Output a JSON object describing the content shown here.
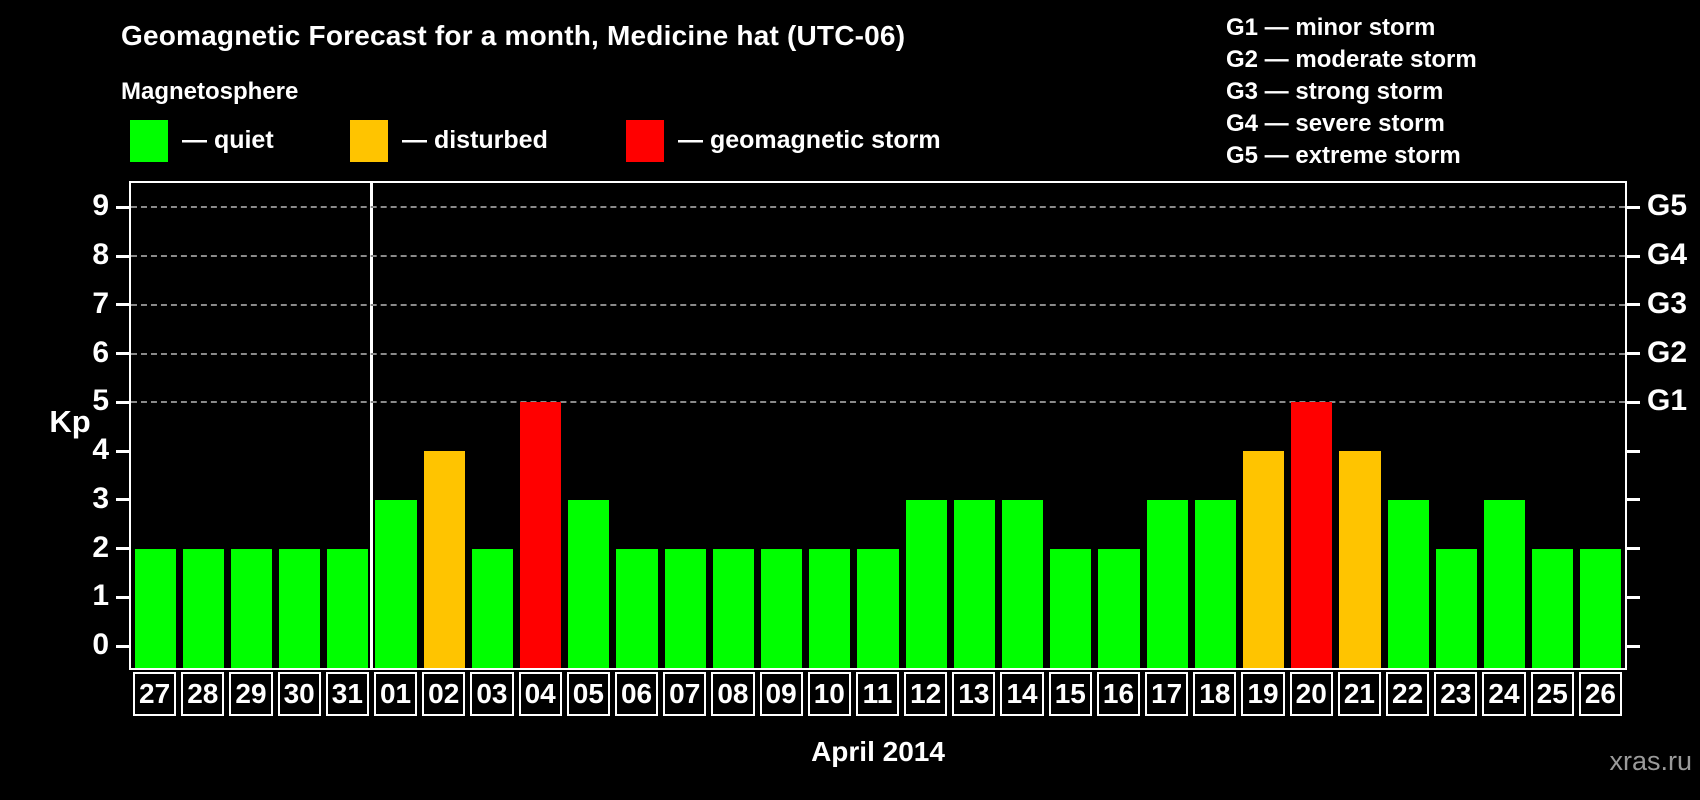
{
  "page": {
    "watermark": "xras.ru"
  },
  "legend": {
    "title": "Magnetosphere",
    "items": [
      {
        "key": "quiet",
        "label": "— quiet",
        "color": "#00ff00"
      },
      {
        "key": "disturbed",
        "label": "— disturbed",
        "color": "#ffc400"
      },
      {
        "key": "storm",
        "label": "— geomagnetic storm",
        "color": "#ff0000"
      }
    ]
  },
  "g_legend": {
    "items": [
      "G1 — minor storm",
      "G2 — moderate storm",
      "G3 — strong storm",
      "G4 — severe storm",
      "G5 — extreme storm"
    ]
  },
  "chart_data": {
    "type": "bar",
    "title": "Geomagnetic Forecast for a month, Medicine hat (UTC-06)",
    "ylabel": "Kp",
    "xlabel": "April 2014",
    "ylim": [
      -0.45,
      9.5
    ],
    "yticks": [
      0,
      1,
      2,
      3,
      4,
      5,
      6,
      7,
      8,
      9
    ],
    "gridline_values": [
      5,
      6,
      7,
      8,
      9
    ],
    "right_axis_labels": [
      {
        "value": 5,
        "label": "G1"
      },
      {
        "value": 6,
        "label": "G2"
      },
      {
        "value": 7,
        "label": "G3"
      },
      {
        "value": 8,
        "label": "G4"
      },
      {
        "value": 9,
        "label": "G5"
      }
    ],
    "categories": [
      "27",
      "28",
      "29",
      "30",
      "31",
      "01",
      "02",
      "03",
      "04",
      "05",
      "06",
      "07",
      "08",
      "09",
      "10",
      "11",
      "12",
      "13",
      "14",
      "15",
      "16",
      "17",
      "18",
      "19",
      "20",
      "21",
      "22",
      "23",
      "24",
      "25",
      "26"
    ],
    "values": [
      2,
      2,
      2,
      2,
      2,
      3,
      4,
      2,
      5,
      3,
      2,
      2,
      2,
      2,
      2,
      2,
      3,
      3,
      3,
      2,
      2,
      3,
      3,
      4,
      5,
      4,
      3,
      2,
      3,
      2,
      2
    ],
    "statuses": [
      "quiet",
      "quiet",
      "quiet",
      "quiet",
      "quiet",
      "quiet",
      "disturbed",
      "quiet",
      "storm",
      "quiet",
      "quiet",
      "quiet",
      "quiet",
      "quiet",
      "quiet",
      "quiet",
      "quiet",
      "quiet",
      "quiet",
      "quiet",
      "quiet",
      "quiet",
      "quiet",
      "disturbed",
      "storm",
      "disturbed",
      "quiet",
      "quiet",
      "quiet",
      "quiet",
      "quiet"
    ],
    "divider_after_index": 4,
    "grid": "horizontal dashed lines at storm levels 5-9",
    "legend_position": "top"
  },
  "colors": {
    "background": "#000000",
    "text": "#ffffff",
    "frame": "#ffffff",
    "gridline": "#8a8a8a",
    "watermark": "#9a9a9a",
    "quiet": "#00ff00",
    "disturbed": "#ffc400",
    "storm": "#ff0000"
  }
}
